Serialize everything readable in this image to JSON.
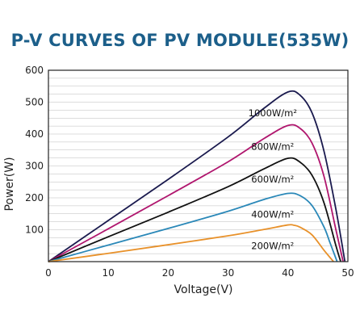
{
  "chart_data": {
    "type": "line",
    "title": "P-V CURVES OF PV MODULE(535W)",
    "xlabel": "Voltage(V)",
    "ylabel": "Power(W)",
    "xlim": [
      0,
      50
    ],
    "ylim": [
      0,
      600
    ],
    "xticks": [
      "0",
      "10",
      "20",
      "30",
      "40",
      "50"
    ],
    "yticks": [
      "100",
      "200",
      "300",
      "400",
      "500",
      "600"
    ],
    "grid": "horizontal",
    "series": [
      {
        "name": "1000W/m²",
        "color": "#1a1a4e",
        "x": [
          0,
          10,
          20,
          30,
          36,
          40,
          42,
          44,
          46,
          48,
          49.5
        ],
        "y": [
          0,
          129,
          258,
          391,
          481,
          532,
          522,
          467,
          347,
          164,
          0
        ]
      },
      {
        "name": "800W/m²",
        "color": "#b0166e",
        "x": [
          0,
          10,
          20,
          30,
          36,
          40,
          42,
          44,
          46,
          48,
          49.2
        ],
        "y": [
          0,
          103,
          207,
          313,
          386,
          427,
          418,
          372,
          268,
          100,
          0
        ]
      },
      {
        "name": "600W/m²",
        "color": "#111111",
        "x": [
          0,
          10,
          20,
          30,
          36,
          40,
          42,
          44,
          46,
          48,
          48.8
        ],
        "y": [
          0,
          78,
          155,
          235,
          291,
          324,
          312,
          271,
          185,
          50,
          0
        ]
      },
      {
        "name": "400W/m²",
        "color": "#2a88b8",
        "x": [
          0,
          10,
          20,
          30,
          36,
          40,
          42,
          44,
          46,
          47,
          48.2
        ],
        "y": [
          0,
          52,
          104,
          158,
          195,
          214,
          207,
          176,
          109,
          60,
          0
        ]
      },
      {
        "name": "200W/m²",
        "color": "#e8912a",
        "x": [
          0,
          10,
          20,
          30,
          36,
          40,
          41,
          42,
          44,
          46,
          47.6
        ],
        "y": [
          0,
          26,
          53,
          81,
          101,
          115,
          114,
          108,
          84,
          36,
          0
        ]
      }
    ]
  },
  "colors": {
    "title": "#1c5f8a",
    "grid": "#bbbbbb",
    "axis": "#222222"
  }
}
